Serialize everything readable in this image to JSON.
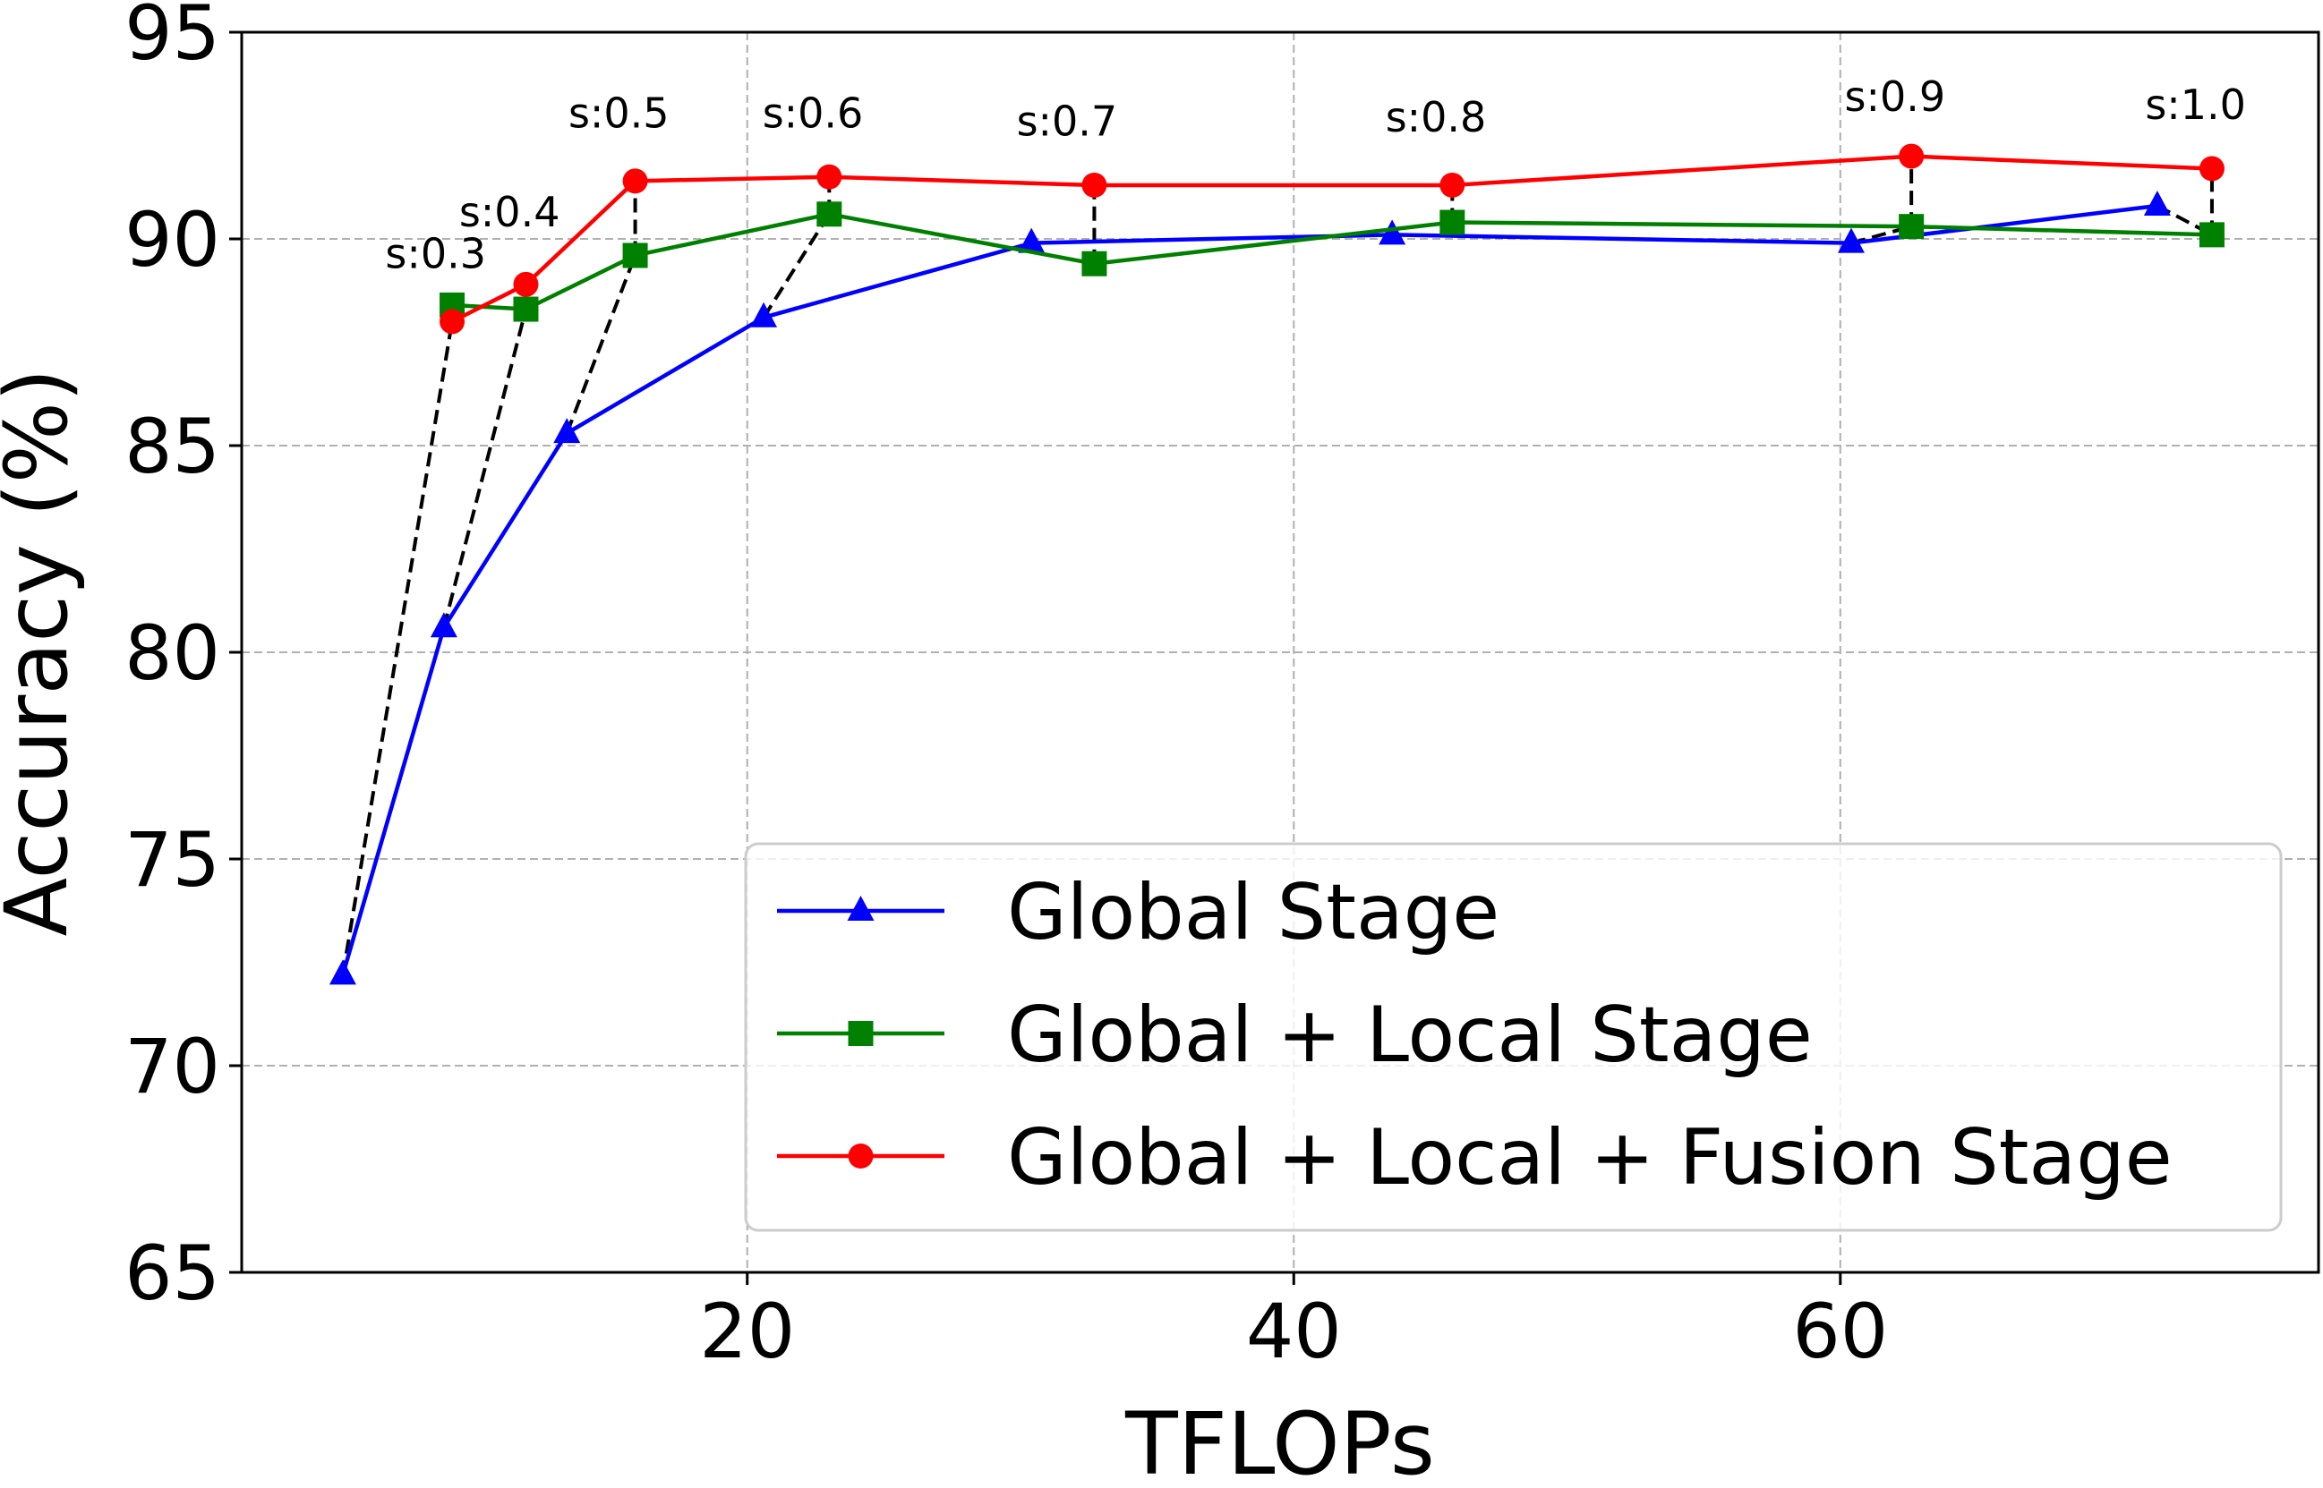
{
  "chart_data": {
    "type": "line",
    "xlabel": "TFLOPs",
    "ylabel": "Accuracy (%)",
    "xlim": [
      1.5,
      77.5
    ],
    "ylim": [
      65,
      95
    ],
    "xticks": [
      20,
      40,
      60
    ],
    "yticks": [
      65,
      70,
      75,
      80,
      85,
      90,
      95
    ],
    "grid": true,
    "legend_position": "lower-right",
    "series": [
      {
        "name": "Global Stage",
        "color": "#0000ff",
        "marker": "triangle",
        "points": [
          [
            5.2,
            72.2
          ],
          [
            8.9,
            80.6
          ],
          [
            13.4,
            85.3
          ],
          [
            20.6,
            88.1
          ],
          [
            30.4,
            89.9
          ],
          [
            43.6,
            90.1
          ],
          [
            60.4,
            89.9
          ],
          [
            71.6,
            90.8
          ]
        ]
      },
      {
        "name": "Global + Local Stage",
        "color": "#008000",
        "marker": "square",
        "points": [
          [
            9.2,
            88.4
          ],
          [
            11.9,
            88.3
          ],
          [
            15.9,
            89.6
          ],
          [
            23.0,
            90.6
          ],
          [
            32.7,
            89.4
          ],
          [
            45.8,
            90.4
          ],
          [
            62.6,
            90.3
          ],
          [
            73.6,
            90.1
          ]
        ]
      },
      {
        "name": "Global + Local + Fusion Stage",
        "color": "#ff0000",
        "marker": "circle",
        "points": [
          [
            9.2,
            88.0
          ],
          [
            11.9,
            88.9
          ],
          [
            15.9,
            91.4
          ],
          [
            23.0,
            91.5
          ],
          [
            32.7,
            91.3
          ],
          [
            45.8,
            91.3
          ],
          [
            62.6,
            92.0
          ],
          [
            73.6,
            91.7
          ]
        ]
      }
    ],
    "annotations": [
      {
        "text": "s:0.3",
        "x": 8.6,
        "y": 89.3
      },
      {
        "text": "s:0.4",
        "x": 11.3,
        "y": 90.3
      },
      {
        "text": "s:0.5",
        "x": 15.3,
        "y": 92.7
      },
      {
        "text": "s:0.6",
        "x": 22.4,
        "y": 92.7
      },
      {
        "text": "s:0.7",
        "x": 31.7,
        "y": 92.5
      },
      {
        "text": "s:0.8",
        "x": 45.2,
        "y": 92.6
      },
      {
        "text": "s:0.9",
        "x": 62.0,
        "y": 93.1
      },
      {
        "text": "s:1.0",
        "x": 73.0,
        "y": 92.9
      }
    ],
    "connectors": [
      {
        "from": [
          5.2,
          72.2
        ],
        "to": [
          9.2,
          88.0
        ]
      },
      {
        "from": [
          8.9,
          80.6
        ],
        "to": [
          11.9,
          88.3
        ]
      },
      {
        "from": [
          13.4,
          85.3
        ],
        "to": [
          15.9,
          89.6
        ]
      },
      {
        "from": [
          15.9,
          89.6
        ],
        "to": [
          15.9,
          91.4
        ]
      },
      {
        "from": [
          20.6,
          88.1
        ],
        "to": [
          23.0,
          90.6
        ]
      },
      {
        "from": [
          23.0,
          90.6
        ],
        "to": [
          23.0,
          91.5
        ]
      },
      {
        "from": [
          32.7,
          89.4
        ],
        "to": [
          32.7,
          91.3
        ]
      },
      {
        "from": [
          45.8,
          90.4
        ],
        "to": [
          45.8,
          91.3
        ]
      },
      {
        "from": [
          60.4,
          89.9
        ],
        "to": [
          62.6,
          90.3
        ]
      },
      {
        "from": [
          62.6,
          90.3
        ],
        "to": [
          62.6,
          92.0
        ]
      },
      {
        "from": [
          71.6,
          90.8
        ],
        "to": [
          73.6,
          90.1
        ]
      },
      {
        "from": [
          73.6,
          90.1
        ],
        "to": [
          73.6,
          91.7
        ]
      }
    ]
  }
}
